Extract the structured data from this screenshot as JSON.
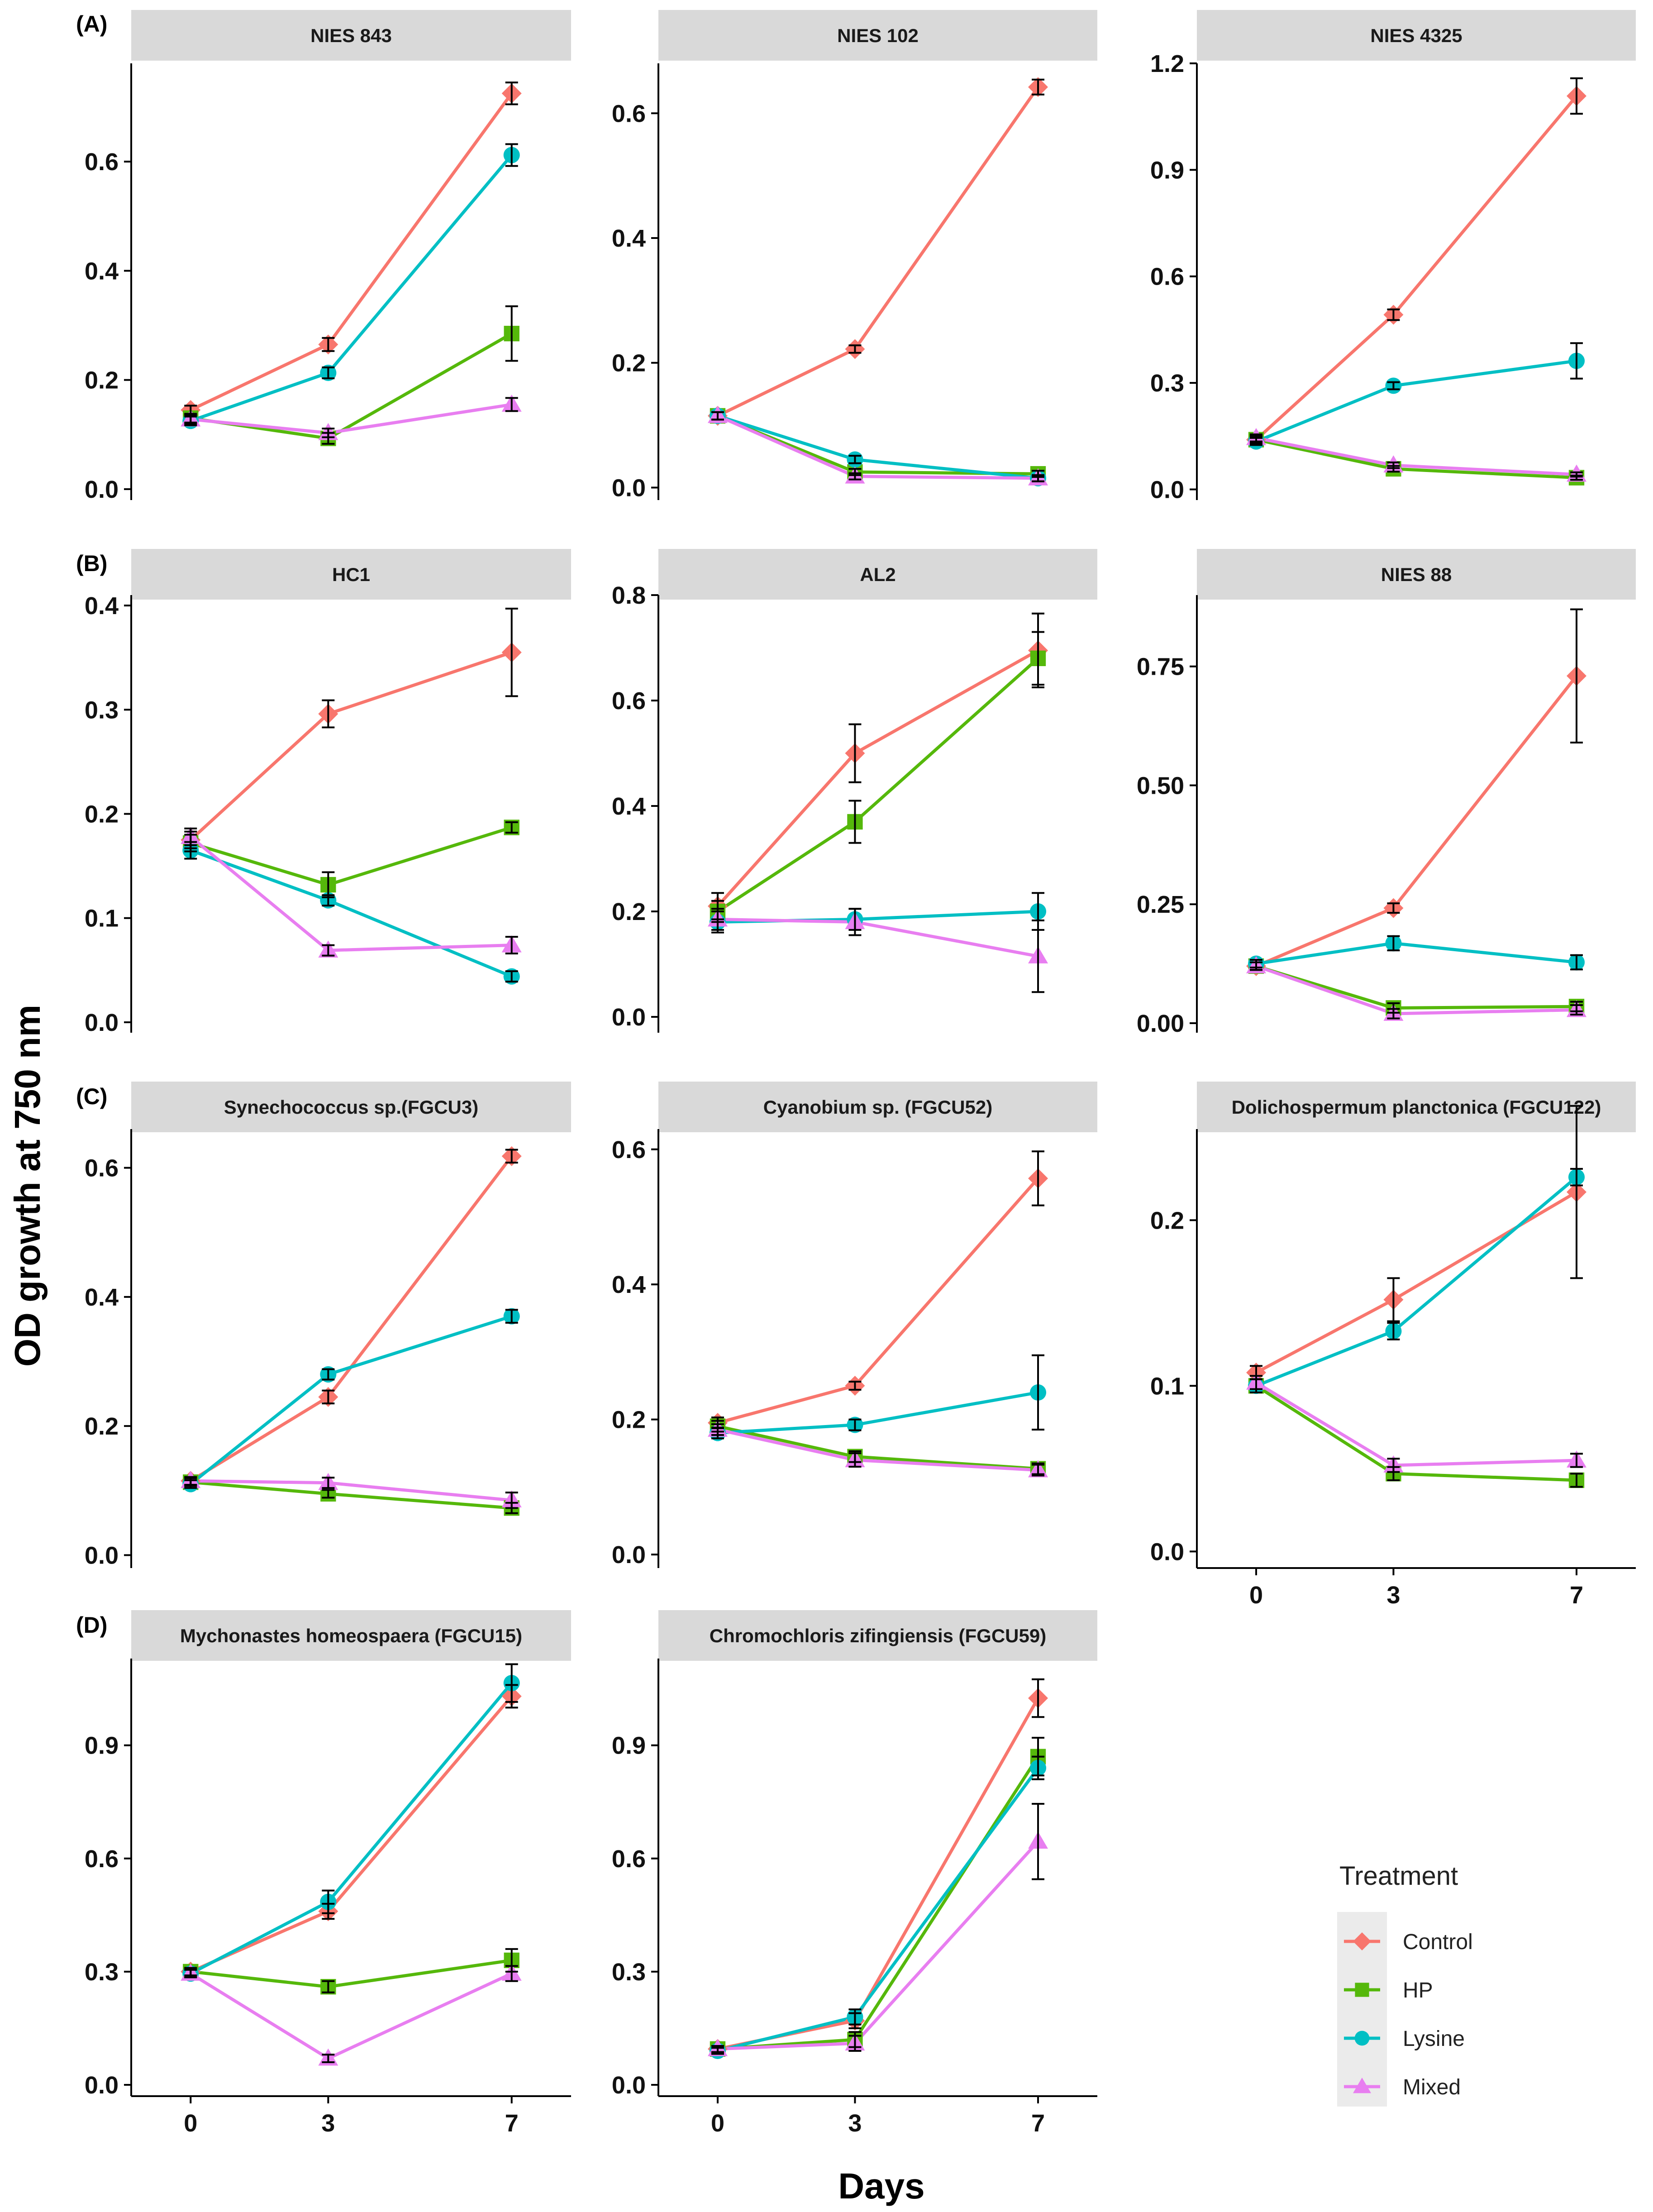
{
  "chart_data": {
    "type": "line",
    "ylabel": "OD growth at 750 nm",
    "xlabel": "Days",
    "x": [
      0,
      3,
      7
    ],
    "x_tick_labels": [
      "0",
      "3",
      "7"
    ],
    "row_tags": [
      "(A)",
      "(B)",
      "(C)",
      "(D)"
    ],
    "legend": {
      "title": "Treatment",
      "placement": "right",
      "entries": [
        {
          "name": "Control",
          "color": "#F8766D",
          "shape": "diamond"
        },
        {
          "name": "HP",
          "color": "#55B80B",
          "shape": "square"
        },
        {
          "name": "Lysine",
          "color": "#00BFC4",
          "shape": "circle"
        },
        {
          "name": "Mixed",
          "color": "#E87EF0",
          "shape": "triangle"
        }
      ]
    },
    "panels": [
      {
        "row": 0,
        "col": 0,
        "title": "NIES 843",
        "ylim": [
          -0.02,
          0.78
        ],
        "yticks": [
          0,
          0.2,
          0.4,
          0.6
        ],
        "ytick_labels": [
          "0.0",
          "0.2",
          "0.4",
          "0.6"
        ],
        "series": [
          {
            "name": "Control",
            "values": [
              0.145,
              0.265,
              0.725
            ],
            "err": [
              0.008,
              0.012,
              0.02
            ]
          },
          {
            "name": "HP",
            "values": [
              0.13,
              0.093,
              0.285
            ],
            "err": [
              0.008,
              0.01,
              0.05
            ]
          },
          {
            "name": "Lysine",
            "values": [
              0.125,
              0.213,
              0.612
            ],
            "err": [
              0.008,
              0.01,
              0.02
            ]
          },
          {
            "name": "Mixed",
            "values": [
              0.128,
              0.103,
              0.155
            ],
            "err": [
              0.008,
              0.008,
              0.012
            ]
          }
        ]
      },
      {
        "row": 0,
        "col": 1,
        "title": "NIES 102",
        "ylim": [
          -0.02,
          0.68
        ],
        "yticks": [
          0,
          0.2,
          0.4,
          0.6
        ],
        "ytick_labels": [
          "0.0",
          "0.2",
          "0.4",
          "0.6"
        ],
        "series": [
          {
            "name": "Control",
            "values": [
              0.115,
              0.222,
              0.642
            ],
            "err": [
              0.006,
              0.006,
              0.012
            ]
          },
          {
            "name": "HP",
            "values": [
              0.115,
              0.025,
              0.022
            ],
            "err": [
              0.006,
              0.005,
              0.005
            ]
          },
          {
            "name": "Lysine",
            "values": [
              0.115,
              0.045,
              0.015
            ],
            "err": [
              0.006,
              0.006,
              0.005
            ]
          },
          {
            "name": "Mixed",
            "values": [
              0.115,
              0.018,
              0.015
            ],
            "err": [
              0.006,
              0.005,
              0.005
            ]
          }
        ]
      },
      {
        "row": 0,
        "col": 2,
        "title": "NIES 4325",
        "ylim": [
          -0.03,
          1.2
        ],
        "yticks": [
          0,
          0.3,
          0.6,
          0.9,
          1.2
        ],
        "ytick_labels": [
          "0.0",
          "0.3",
          "0.6",
          "0.9",
          "1.2"
        ],
        "series": [
          {
            "name": "Control",
            "values": [
              0.14,
              0.492,
              1.108
            ],
            "err": [
              0.01,
              0.015,
              0.05
            ]
          },
          {
            "name": "HP",
            "values": [
              0.14,
              0.058,
              0.033
            ],
            "err": [
              0.01,
              0.008,
              0.006
            ]
          },
          {
            "name": "Lysine",
            "values": [
              0.135,
              0.292,
              0.362
            ],
            "err": [
              0.01,
              0.01,
              0.05
            ]
          },
          {
            "name": "Mixed",
            "values": [
              0.145,
              0.068,
              0.042
            ],
            "err": [
              0.01,
              0.008,
              0.006
            ]
          }
        ]
      },
      {
        "row": 1,
        "col": 0,
        "title": "HC1",
        "ylim": [
          -0.01,
          0.41
        ],
        "yticks": [
          0,
          0.1,
          0.2,
          0.3,
          0.4
        ],
        "ytick_labels": [
          "0.0",
          "0.1",
          "0.2",
          "0.3",
          "0.4"
        ],
        "series": [
          {
            "name": "Control",
            "values": [
              0.175,
              0.296,
              0.355
            ],
            "err": [
              0.008,
              0.013,
              0.042
            ]
          },
          {
            "name": "HP",
            "values": [
              0.172,
              0.132,
              0.187
            ],
            "err": [
              0.008,
              0.012,
              0.005
            ]
          },
          {
            "name": "Lysine",
            "values": [
              0.165,
              0.117,
              0.044
            ],
            "err": [
              0.008,
              0.005,
              0.005
            ]
          },
          {
            "name": "Mixed",
            "values": [
              0.178,
              0.069,
              0.074
            ],
            "err": [
              0.008,
              0.005,
              0.008
            ]
          }
        ]
      },
      {
        "row": 1,
        "col": 1,
        "title": "AL2",
        "ylim": [
          -0.03,
          0.8
        ],
        "yticks": [
          0,
          0.2,
          0.4,
          0.6,
          0.8
        ],
        "ytick_labels": [
          "0.0",
          "0.2",
          "0.4",
          "0.6",
          "0.8"
        ],
        "series": [
          {
            "name": "Control",
            "values": [
              0.21,
              0.5,
              0.695
            ],
            "err": [
              0.025,
              0.055,
              0.07
            ]
          },
          {
            "name": "HP",
            "values": [
              0.2,
              0.37,
              0.68
            ],
            "err": [
              0.02,
              0.04,
              0.05
            ]
          },
          {
            "name": "Lysine",
            "values": [
              0.18,
              0.185,
              0.2
            ],
            "err": [
              0.02,
              0.02,
              0.035
            ]
          },
          {
            "name": "Mixed",
            "values": [
              0.185,
              0.18,
              0.115
            ],
            "err": [
              0.02,
              0.025,
              0.068
            ]
          }
        ]
      },
      {
        "row": 1,
        "col": 2,
        "title": "NIES 88",
        "ylim": [
          -0.02,
          0.9
        ],
        "yticks": [
          0,
          0.25,
          0.5,
          0.75
        ],
        "ytick_labels": [
          "0.00",
          "0.25",
          "0.50",
          "0.75"
        ],
        "series": [
          {
            "name": "Control",
            "values": [
              0.12,
              0.242,
              0.73
            ],
            "err": [
              0.008,
              0.01,
              0.14
            ]
          },
          {
            "name": "HP",
            "values": [
              0.12,
              0.032,
              0.035
            ],
            "err": [
              0.008,
              0.01,
              0.01
            ]
          },
          {
            "name": "Lysine",
            "values": [
              0.125,
              0.168,
              0.128
            ],
            "err": [
              0.008,
              0.015,
              0.015
            ]
          },
          {
            "name": "Mixed",
            "values": [
              0.12,
              0.02,
              0.028
            ],
            "err": [
              0.008,
              0.01,
              0.01
            ]
          }
        ]
      },
      {
        "row": 2,
        "col": 0,
        "title": "Synechococcus sp.(FGCU3)",
        "ylim": [
          -0.02,
          0.66
        ],
        "yticks": [
          0,
          0.2,
          0.4,
          0.6
        ],
        "ytick_labels": [
          "0.0",
          "0.2",
          "0.4",
          "0.6"
        ],
        "series": [
          {
            "name": "Control",
            "values": [
              0.115,
              0.245,
              0.618
            ],
            "err": [
              0.006,
              0.01,
              0.01
            ]
          },
          {
            "name": "HP",
            "values": [
              0.113,
              0.095,
              0.073
            ],
            "err": [
              0.006,
              0.006,
              0.008
            ]
          },
          {
            "name": "Lysine",
            "values": [
              0.11,
              0.28,
              0.37
            ],
            "err": [
              0.006,
              0.008,
              0.01
            ]
          },
          {
            "name": "Mixed",
            "values": [
              0.115,
              0.112,
              0.085
            ],
            "err": [
              0.006,
              0.008,
              0.012
            ]
          }
        ]
      },
      {
        "row": 2,
        "col": 1,
        "title": "Cyanobium sp.    (FGCU52)",
        "ylim": [
          -0.02,
          0.63
        ],
        "yticks": [
          0,
          0.2,
          0.4,
          0.6
        ],
        "ytick_labels": [
          "0.0",
          "0.2",
          "0.4",
          "0.6"
        ],
        "series": [
          {
            "name": "Control",
            "values": [
              0.195,
              0.25,
              0.557
            ],
            "err": [
              0.008,
              0.006,
              0.04
            ]
          },
          {
            "name": "HP",
            "values": [
              0.19,
              0.145,
              0.127
            ],
            "err": [
              0.008,
              0.008,
              0.008
            ]
          },
          {
            "name": "Lysine",
            "values": [
              0.18,
              0.192,
              0.24
            ],
            "err": [
              0.008,
              0.008,
              0.055
            ]
          },
          {
            "name": "Mixed",
            "values": [
              0.185,
              0.14,
              0.125
            ],
            "err": [
              0.008,
              0.01,
              0.008
            ]
          }
        ]
      },
      {
        "row": 2,
        "col": 2,
        "title": "Dolichospermum planctonica (FGCU122)",
        "ylim": [
          -0.01,
          0.255
        ],
        "yticks": [
          0,
          0.1,
          0.2
        ],
        "ytick_labels": [
          "0.0",
          "0.1",
          "0.2"
        ],
        "series": [
          {
            "name": "Control",
            "values": [
              0.108,
              0.152,
              0.217
            ],
            "err": [
              0.004,
              0.013,
              0.052
            ]
          },
          {
            "name": "HP",
            "values": [
              0.1,
              0.047,
              0.043
            ],
            "err": [
              0.004,
              0.004,
              0.004
            ]
          },
          {
            "name": "Lysine",
            "values": [
              0.1,
              0.133,
              0.226
            ],
            "err": [
              0.004,
              0.005,
              0.005
            ]
          },
          {
            "name": "Mixed",
            "values": [
              0.102,
              0.052,
              0.055
            ],
            "err": [
              0.004,
              0.004,
              0.004
            ]
          }
        ]
      },
      {
        "row": 3,
        "col": 0,
        "title": "Mychonastes homeospaera  (FGCU15)",
        "ylim": [
          -0.03,
          1.13
        ],
        "yticks": [
          0,
          0.3,
          0.6,
          0.9
        ],
        "ytick_labels": [
          "0.0",
          "0.3",
          "0.6",
          "0.9"
        ],
        "series": [
          {
            "name": "Control",
            "values": [
              0.3,
              0.46,
              1.03
            ],
            "err": [
              0.01,
              0.02,
              0.03
            ]
          },
          {
            "name": "HP",
            "values": [
              0.3,
              0.26,
              0.33
            ],
            "err": [
              0.01,
              0.015,
              0.03
            ]
          },
          {
            "name": "Lysine",
            "values": [
              0.295,
              0.485,
              1.065
            ],
            "err": [
              0.01,
              0.03,
              0.05
            ]
          },
          {
            "name": "Mixed",
            "values": [
              0.295,
              0.07,
              0.295
            ],
            "err": [
              0.01,
              0.01,
              0.02
            ]
          }
        ]
      },
      {
        "row": 3,
        "col": 1,
        "title": "Chromochloris zifingiensis (FGCU59)",
        "ylim": [
          -0.03,
          1.13
        ],
        "yticks": [
          0,
          0.3,
          0.6,
          0.9
        ],
        "ytick_labels": [
          "0.0",
          "0.3",
          "0.6",
          "0.9"
        ],
        "series": [
          {
            "name": "Control",
            "values": [
              0.095,
              0.17,
              1.025
            ],
            "err": [
              0.008,
              0.02,
              0.05
            ]
          },
          {
            "name": "HP",
            "values": [
              0.095,
              0.12,
              0.87
            ],
            "err": [
              0.008,
              0.02,
              0.05
            ]
          },
          {
            "name": "Lysine",
            "values": [
              0.09,
              0.18,
              0.84
            ],
            "err": [
              0.008,
              0.02,
              0.03
            ]
          },
          {
            "name": "Mixed",
            "values": [
              0.095,
              0.11,
              0.645
            ],
            "err": [
              0.008,
              0.02,
              0.1
            ]
          }
        ]
      }
    ]
  }
}
